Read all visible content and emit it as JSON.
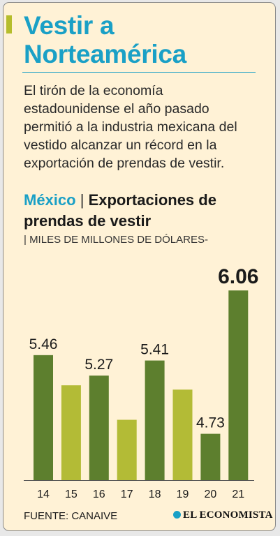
{
  "title": "Vestir a Norteamérica",
  "intro": "El tirón de la economía estadounidense el año pasado permitió a la industria mexicana del vestido alcanzar un récord en la exportación de prendas de vestir.",
  "chart_heading": {
    "country": "México",
    "separator": "|",
    "subject": "Exportaciones de prendas de vestir",
    "unit": "| MILES DE MILLONES DE DÓLARES-"
  },
  "colors": {
    "title": "#1aa0c6",
    "bar_dark": "#5d7f2e",
    "bar_light": "#b3bb36",
    "background": "#fff2d6"
  },
  "chart_data": {
    "type": "bar",
    "categories": [
      "14",
      "15",
      "16",
      "17",
      "18",
      "19",
      "20",
      "21"
    ],
    "values": [
      5.46,
      5.18,
      5.27,
      4.86,
      5.41,
      5.14,
      4.73,
      6.06
    ],
    "data_labels": [
      "5.46",
      "",
      "5.27",
      "",
      "5.41",
      "",
      "4.73",
      "6.06"
    ],
    "highlight_index": 7,
    "bar_colors": [
      "dark",
      "light",
      "dark",
      "light",
      "dark",
      "light",
      "dark",
      "dark"
    ],
    "ylim": [
      4.3,
      6.1
    ],
    "xlabel": "",
    "ylabel": "",
    "grid": false,
    "legend": "none"
  },
  "footer": {
    "source": "FUENTE: CANAIVE",
    "brand": "EL ECONOMISTA"
  }
}
